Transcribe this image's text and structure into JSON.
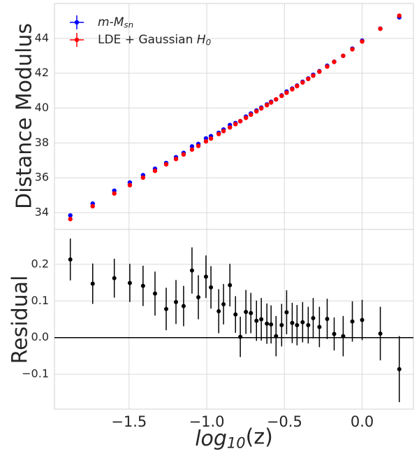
{
  "chart_data": [
    {
      "type": "scatter",
      "ylabel": "Distance Modulus",
      "legend": "upper left",
      "grid": true,
      "xlim": [
        -1.98,
        0.33
      ],
      "ylim": [
        33.04,
        46.0
      ],
      "xticks": [
        -1.5,
        -1.0,
        -0.5,
        0.0
      ],
      "yticks": [
        34,
        36,
        38,
        40,
        42,
        44
      ],
      "x": [
        -1.878,
        -1.734,
        -1.595,
        -1.495,
        -1.41,
        -1.333,
        -1.261,
        -1.198,
        -1.149,
        -1.095,
        -1.054,
        -1.005,
        -0.973,
        -0.923,
        -0.892,
        -0.851,
        -0.815,
        -0.784,
        -0.748,
        -0.716,
        -0.68,
        -0.649,
        -0.613,
        -0.586,
        -0.554,
        -0.518,
        -0.486,
        -0.45,
        -0.419,
        -0.383,
        -0.347,
        -0.315,
        -0.275,
        -0.225,
        -0.18,
        -0.122,
        -0.063,
        0.0,
        0.117,
        0.239
      ],
      "series": [
        {
          "name": "$m$-$M_{sn}$",
          "color": "#0000ff",
          "values": [
            33.84,
            34.52,
            35.26,
            35.73,
            36.15,
            36.52,
            36.85,
            37.18,
            37.43,
            37.8,
            37.94,
            38.26,
            38.39,
            38.58,
            38.77,
            39.03,
            39.14,
            39.25,
            39.51,
            39.69,
            39.86,
            40.03,
            40.21,
            40.36,
            40.5,
            40.73,
            40.95,
            41.12,
            41.29,
            41.51,
            41.7,
            41.91,
            42.12,
            42.43,
            42.66,
            43.0,
            43.41,
            43.87,
            44.56,
            45.21
          ]
        },
        {
          "name": "LDE + Gaussian $H_{0}$",
          "color": "#ff0000",
          "values": [
            33.63,
            34.37,
            35.1,
            35.58,
            36.01,
            36.4,
            36.77,
            37.08,
            37.34,
            37.62,
            37.83,
            38.09,
            38.25,
            38.51,
            38.68,
            38.89,
            39.08,
            39.25,
            39.44,
            39.62,
            39.81,
            39.98,
            40.17,
            40.32,
            40.5,
            40.7,
            40.88,
            41.08,
            41.26,
            41.47,
            41.67,
            41.86,
            42.09,
            42.38,
            42.65,
            43.0,
            43.37,
            43.82,
            44.55,
            45.3
          ]
        }
      ]
    },
    {
      "type": "errorbar",
      "ylabel": "Residual",
      "xlabel": "$log_{10}$(z)",
      "grid": true,
      "color": "#000000",
      "hline": 0,
      "xlim": [
        -1.98,
        0.33
      ],
      "ylim": [
        -0.195,
        0.295
      ],
      "xticks": [
        {
          "value": -1.5,
          "label": "−1.5"
        },
        {
          "value": -1.0,
          "label": "−1.0"
        },
        {
          "value": -0.5,
          "label": "−0.5"
        },
        {
          "value": 0.0,
          "label": "0.0"
        }
      ],
      "yticks": [
        {
          "value": -0.1,
          "label": "−0.1"
        },
        {
          "value": 0,
          "label": "0.0"
        },
        0.1,
        0.2
      ],
      "x": [
        -1.878,
        -1.734,
        -1.595,
        -1.495,
        -1.41,
        -1.333,
        -1.261,
        -1.198,
        -1.149,
        -1.095,
        -1.054,
        -1.005,
        -0.973,
        -0.923,
        -0.892,
        -0.851,
        -0.815,
        -0.784,
        -0.748,
        -0.716,
        -0.68,
        -0.649,
        -0.613,
        -0.586,
        -0.554,
        -0.518,
        -0.486,
        -0.45,
        -0.419,
        -0.383,
        -0.347,
        -0.315,
        -0.275,
        -0.225,
        -0.18,
        -0.122,
        -0.063,
        0.0,
        0.117,
        0.239
      ],
      "values": [
        0.213,
        0.147,
        0.162,
        0.149,
        0.141,
        0.12,
        0.078,
        0.097,
        0.086,
        0.183,
        0.11,
        0.166,
        0.137,
        0.072,
        0.091,
        0.143,
        0.063,
        0.002,
        0.07,
        0.067,
        0.046,
        0.05,
        0.038,
        0.036,
        0.004,
        0.034,
        0.069,
        0.04,
        0.034,
        0.042,
        0.034,
        0.053,
        0.029,
        0.051,
        0.01,
        0.004,
        0.044,
        0.048,
        0.011,
        -0.086
      ],
      "errors": [
        0.057,
        0.055,
        0.053,
        0.052,
        0.055,
        0.06,
        0.058,
        0.06,
        0.055,
        0.063,
        0.06,
        0.058,
        0.058,
        0.06,
        0.055,
        0.058,
        0.05,
        0.055,
        0.06,
        0.055,
        0.055,
        0.058,
        0.055,
        0.052,
        0.055,
        0.058,
        0.06,
        0.055,
        0.055,
        0.055,
        0.05,
        0.055,
        0.055,
        0.055,
        0.045,
        0.055,
        0.055,
        0.055,
        0.073,
        0.09
      ]
    }
  ]
}
